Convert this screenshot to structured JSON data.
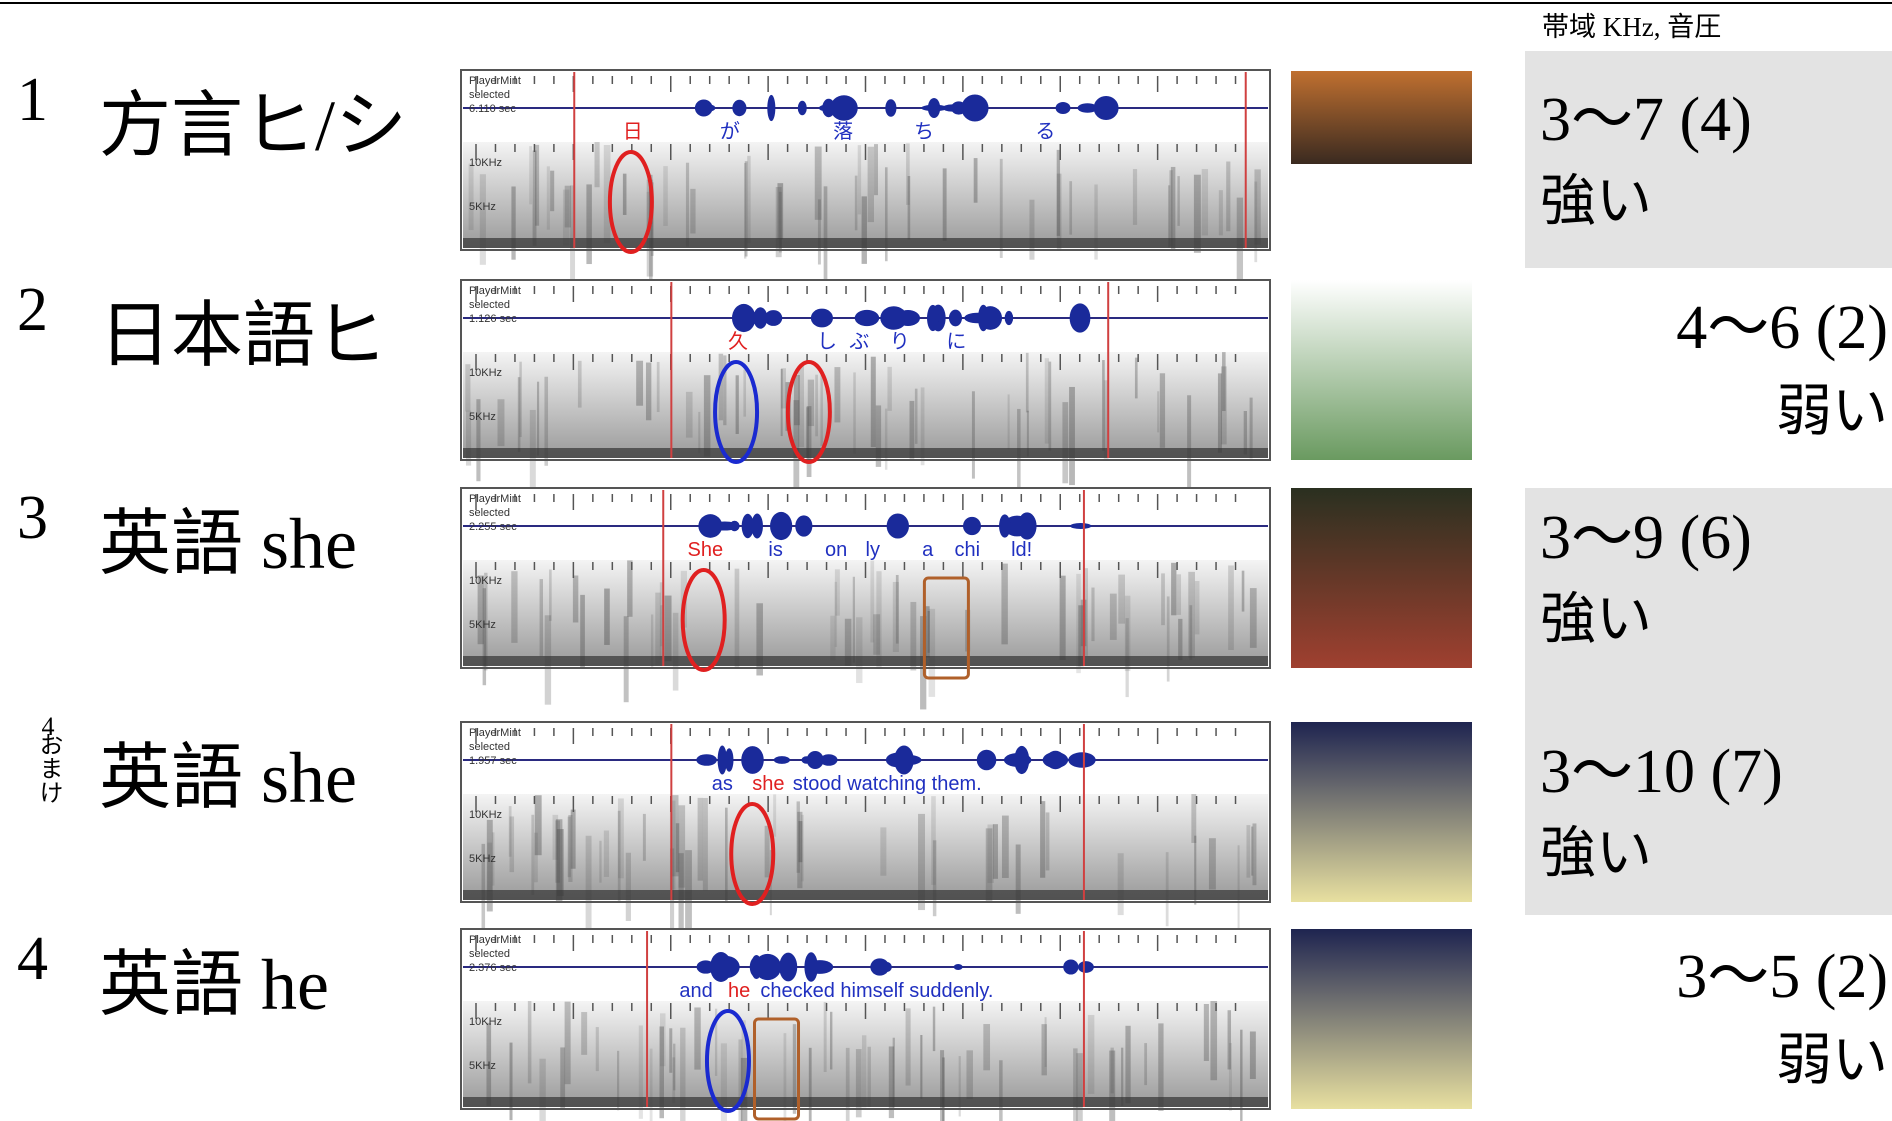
{
  "header": {
    "column_label": "帯域 KHz, 音圧"
  },
  "rows": [
    {
      "number": "1",
      "label": "方言ヒ/シ",
      "player": {
        "app": "PlayerMint",
        "status": "selected",
        "time": "6.110 sec",
        "freq_high": "10KHz",
        "freq_low": "5KHz"
      },
      "lyrics": [
        "日",
        "が",
        "落",
        "ち",
        "る"
      ],
      "lyric_colors": [
        "#e02020",
        "#2030c0",
        "#2030c0",
        "#2030c0",
        "#2030c0"
      ],
      "band": "3〜7 (4)",
      "pressure": "強い"
    },
    {
      "number": "2",
      "label": "日本語ヒ",
      "player": {
        "app": "PlayerMint",
        "status": "selected",
        "time": "1.126 sec",
        "freq_high": "10KHz",
        "freq_low": "5KHz"
      },
      "lyrics": [
        "久",
        "し",
        "ぶ",
        "り",
        "に"
      ],
      "lyric_colors": [
        "#e02020",
        "#2030c0",
        "#2030c0",
        "#2030c0",
        "#2030c0"
      ],
      "band": "4〜6 (2)",
      "pressure": "弱い"
    },
    {
      "number": "3",
      "label": "英語 she",
      "player": {
        "app": "PlayerMint",
        "status": "selected",
        "time": "2.255 sec",
        "freq_high": "10KHz",
        "freq_low": "5KHz"
      },
      "lyrics": [
        "She",
        "is",
        "on",
        "ly",
        "a",
        "chi",
        "ld!"
      ],
      "lyric_colors": [
        "#e02020",
        "#2030c0",
        "#2030c0",
        "#2030c0",
        "#2030c0",
        "#2030c0",
        "#2030c0"
      ],
      "band": "3〜9 (6)",
      "pressure": "強い"
    },
    {
      "number": "4",
      "note": "おまけ",
      "label": "英語 she",
      "player": {
        "app": "PlayerMint",
        "status": "selected",
        "time": "1.957 sec",
        "freq_high": "10KHz",
        "freq_low": "5KHz"
      },
      "lyrics": [
        "as",
        "she",
        "stood watching them."
      ],
      "lyric_colors": [
        "#2030c0",
        "#e02020",
        "#2030c0"
      ],
      "band": "3〜10 (7)",
      "pressure": "強い"
    },
    {
      "number": "4",
      "label": "英語 he",
      "player": {
        "app": "PlayerMint",
        "status": "selected",
        "time": "2.376 sec",
        "freq_high": "10KHz",
        "freq_low": "5KHz"
      },
      "lyrics": [
        "and",
        "he",
        "checked himself suddenly."
      ],
      "lyric_colors": [
        "#2030c0",
        "#e02020",
        "#2030c0"
      ],
      "band": "3〜5 (2)",
      "pressure": "弱い"
    }
  ]
}
